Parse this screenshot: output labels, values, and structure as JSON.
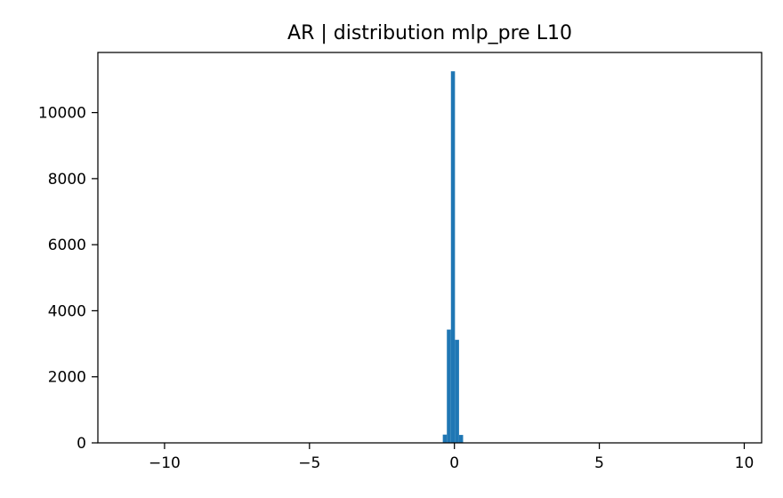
{
  "chart_data": {
    "type": "bar",
    "title": "AR | distribution mlp_pre L10",
    "xlabel": "",
    "ylabel": "",
    "xlim": [
      -12.3,
      10.6
    ],
    "ylim": [
      0,
      11820
    ],
    "x_ticks": [
      {
        "value": -10,
        "label": "−10"
      },
      {
        "value": -5,
        "label": "−5"
      },
      {
        "value": 0,
        "label": "0"
      },
      {
        "value": 5,
        "label": "5"
      },
      {
        "value": 10,
        "label": "10"
      }
    ],
    "y_ticks": [
      {
        "value": 0,
        "label": "0"
      },
      {
        "value": 2000,
        "label": "2000"
      },
      {
        "value": 4000,
        "label": "4000"
      },
      {
        "value": 6000,
        "label": "6000"
      },
      {
        "value": 8000,
        "label": "8000"
      },
      {
        "value": 10000,
        "label": "10000"
      }
    ],
    "bins": [
      {
        "x0": -0.4,
        "x1": -0.26,
        "value": 250
      },
      {
        "x0": -0.26,
        "x1": -0.12,
        "value": 3430
      },
      {
        "x0": -0.12,
        "x1": 0.02,
        "value": 11250
      },
      {
        "x0": 0.02,
        "x1": 0.16,
        "value": 3120
      },
      {
        "x0": 0.16,
        "x1": 0.3,
        "value": 240
      }
    ],
    "grid": false,
    "legend": false,
    "bar_color": "#1f77b4"
  }
}
